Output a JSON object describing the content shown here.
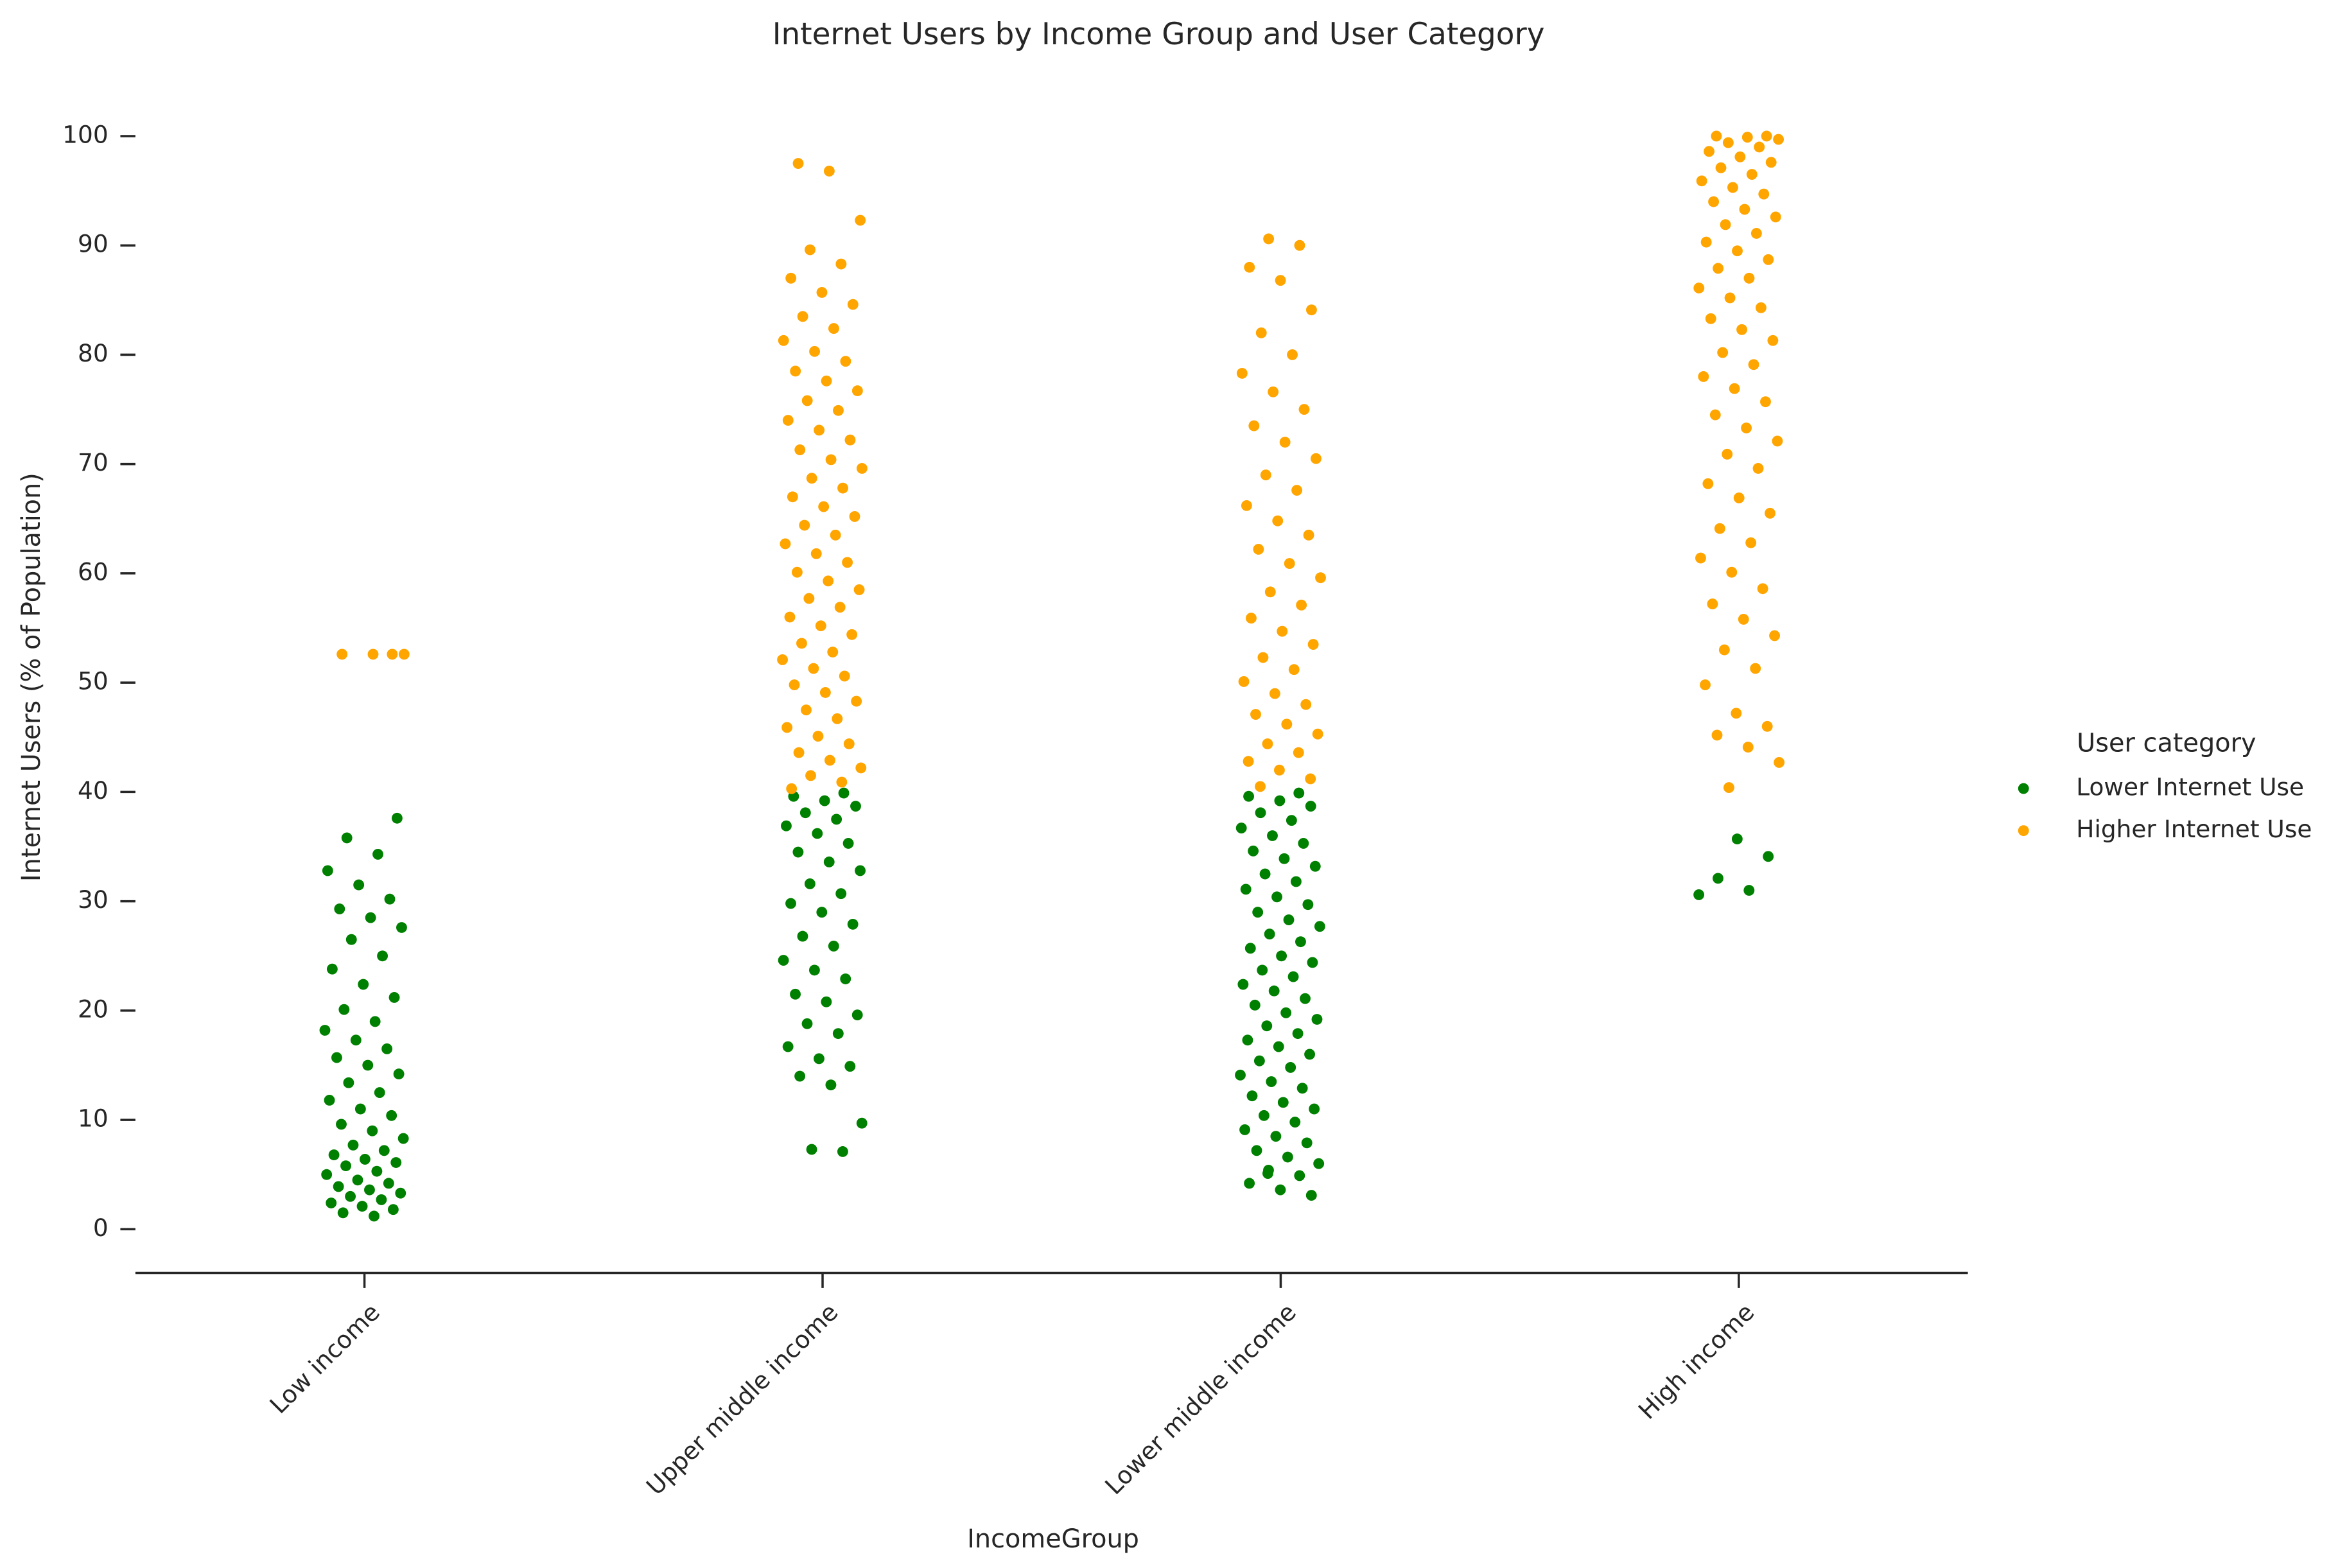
{
  "chart_data": {
    "type": "strip",
    "title": "Internet Users by Income Group and User Category",
    "xlabel": "IncomeGroup",
    "ylabel": "Internet Users (% of Population)",
    "legend_title": "User category",
    "legend_position": "right",
    "categories": [
      "Low income",
      "Upper middle income",
      "Lower middle income",
      "High income"
    ],
    "ylim": [
      -4,
      105
    ],
    "yticks": [
      0,
      10,
      20,
      30,
      40,
      50,
      60,
      70,
      80,
      90,
      100
    ],
    "series": [
      {
        "name": "Lower Internet Use",
        "color": "#008000",
        "values": [
          [
            1.2,
            1.5,
            1.8,
            2.1,
            2.4,
            2.7,
            3.0,
            3.3,
            3.6,
            3.9,
            4.2,
            4.5,
            5.0,
            5.3,
            5.8,
            6.1,
            6.4,
            6.8,
            7.2,
            7.7,
            8.3,
            9.0,
            9.6,
            10.4,
            11.0,
            11.8,
            12.5,
            13.4,
            14.2,
            15.0,
            15.7,
            16.5,
            17.3,
            18.2,
            19.0,
            20.1,
            21.2,
            22.4,
            23.8,
            25.0,
            26.5,
            27.6,
            28.5,
            29.3,
            30.2,
            31.5,
            32.8,
            34.3,
            35.8,
            37.6
          ],
          [
            7.1,
            7.3,
            9.7,
            13.2,
            14.0,
            14.9,
            15.6,
            16.7,
            17.9,
            18.8,
            19.6,
            20.8,
            21.5,
            22.9,
            23.7,
            24.6,
            25.9,
            26.8,
            27.9,
            29.0,
            29.8,
            30.7,
            31.6,
            32.8,
            33.6,
            34.5,
            35.3,
            36.2,
            36.9,
            37.5,
            38.1,
            38.7,
            39.2,
            39.6,
            39.9
          ],
          [
            3.1,
            3.6,
            4.2,
            4.9,
            5.4,
            6.0,
            6.6,
            7.2,
            7.9,
            8.5,
            9.1,
            9.8,
            10.4,
            11.0,
            11.6,
            12.2,
            12.9,
            13.5,
            14.1,
            14.8,
            15.4,
            16.0,
            16.7,
            17.3,
            17.9,
            18.6,
            19.2,
            19.8,
            20.5,
            21.1,
            21.8,
            22.4,
            23.1,
            23.7,
            24.4,
            25.0,
            25.7,
            26.3,
            27.0,
            27.7,
            28.3,
            29.0,
            29.7,
            30.4,
            31.1,
            31.8,
            32.5,
            33.2,
            33.9,
            34.6,
            35.3,
            36.0,
            36.7,
            37.4,
            38.1,
            38.7,
            39.2,
            39.6,
            39.9,
            5.1
          ],
          [
            30.6,
            31.0,
            32.1,
            34.1,
            35.7
          ]
        ]
      },
      {
        "name": "Higher Internet Use",
        "color": "#ffa500",
        "values": [
          [
            52.6,
            52.6,
            52.6,
            52.6
          ],
          [
            40.3,
            40.9,
            41.5,
            42.2,
            42.9,
            43.6,
            44.4,
            45.1,
            45.9,
            46.7,
            47.5,
            48.3,
            49.1,
            49.8,
            50.6,
            51.3,
            52.1,
            52.8,
            53.6,
            54.4,
            55.2,
            56.0,
            56.9,
            57.7,
            58.5,
            59.3,
            60.1,
            61.0,
            61.8,
            62.7,
            63.5,
            64.4,
            65.2,
            66.1,
            67.0,
            67.8,
            68.7,
            69.6,
            70.4,
            71.3,
            72.2,
            73.1,
            74.0,
            74.9,
            75.8,
            76.7,
            77.6,
            78.5,
            79.4,
            80.3,
            81.3,
            82.4,
            83.5,
            84.6,
            85.7,
            87.0,
            88.3,
            89.6,
            92.3,
            96.8,
            97.5
          ],
          [
            40.5,
            41.2,
            42.0,
            42.8,
            43.6,
            44.4,
            45.3,
            46.2,
            47.1,
            48.0,
            49.0,
            50.1,
            51.2,
            52.3,
            53.5,
            54.7,
            55.9,
            57.1,
            58.3,
            59.6,
            60.9,
            62.2,
            63.5,
            64.8,
            66.2,
            67.6,
            69.0,
            70.5,
            72.0,
            73.5,
            75.0,
            76.6,
            78.3,
            80.0,
            82.0,
            84.1,
            86.8,
            88.0,
            90.0,
            90.6
          ],
          [
            40.4,
            42.7,
            44.1,
            45.2,
            46.0,
            47.2,
            49.8,
            51.3,
            53.0,
            54.3,
            55.8,
            57.2,
            58.6,
            60.1,
            61.4,
            62.8,
            64.1,
            65.5,
            66.9,
            68.2,
            69.6,
            70.9,
            72.1,
            73.3,
            74.5,
            75.7,
            76.9,
            78.0,
            79.1,
            80.2,
            81.3,
            82.3,
            83.3,
            84.3,
            85.2,
            86.1,
            87.0,
            87.9,
            88.7,
            89.5,
            90.3,
            91.1,
            91.9,
            92.6,
            93.3,
            94.0,
            94.7,
            95.3,
            95.9,
            96.5,
            97.1,
            97.6,
            98.1,
            98.6,
            99.0,
            99.4,
            99.7,
            99.9,
            100,
            100
          ]
        ]
      }
    ]
  }
}
